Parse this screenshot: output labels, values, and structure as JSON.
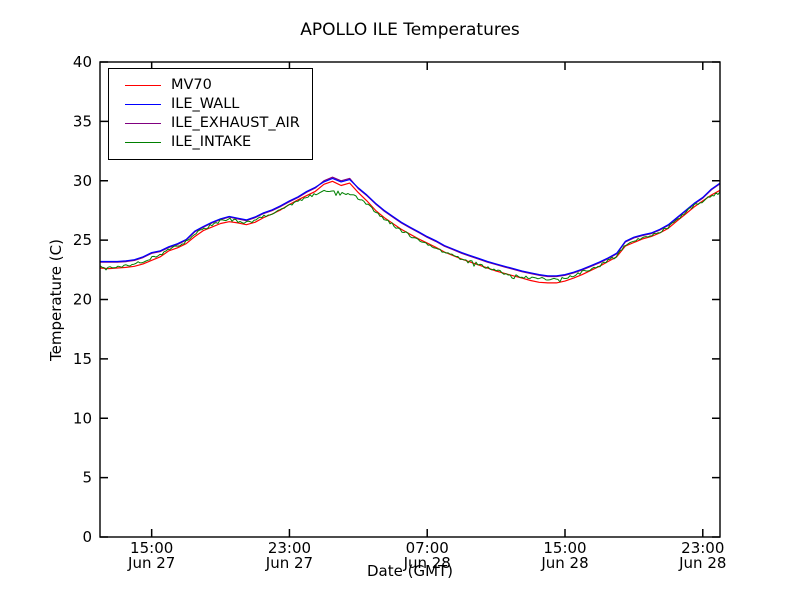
{
  "title": "APOLLO ILE Temperatures",
  "axes": {
    "xlabel": "Date (GMT)",
    "ylabel": "Temperature (C)",
    "ylim": [
      0,
      40
    ],
    "xlim_hours": [
      0,
      36
    ],
    "x_origin": "Jun 27 12:00 GMT",
    "yticks": [
      0,
      5,
      10,
      15,
      20,
      25,
      30,
      35,
      40
    ],
    "xticks": [
      {
        "hour": 3,
        "time": "15:00",
        "date": "Jun 27"
      },
      {
        "hour": 11,
        "time": "23:00",
        "date": "Jun 27"
      },
      {
        "hour": 19,
        "time": "07:00",
        "date": "Jun 28"
      },
      {
        "hour": 27,
        "time": "15:00",
        "date": "Jun 28"
      },
      {
        "hour": 35,
        "time": "23:00",
        "date": "Jun 28"
      }
    ],
    "frame_color": "#000000",
    "background": "#ffffff",
    "grid": false,
    "legend_position": "upper-left"
  },
  "chart_data": {
    "type": "line",
    "title": "APOLLO ILE Temperatures",
    "xlabel": "Date (GMT)",
    "ylabel": "Temperature (C)",
    "x_step_hours": 0.5,
    "x_hours_since": "Jun 27 12:00 GMT",
    "series": [
      {
        "name": "MV70",
        "color": "#ff0000",
        "noise": 0,
        "values": [
          22.65,
          22.6,
          22.65,
          22.7,
          22.8,
          23.0,
          23.3,
          23.6,
          24.1,
          24.35,
          24.7,
          25.3,
          25.8,
          26.1,
          26.4,
          26.55,
          26.45,
          26.3,
          26.5,
          26.9,
          27.2,
          27.55,
          28.0,
          28.4,
          28.75,
          29.1,
          29.7,
          29.95,
          29.6,
          29.8,
          29.0,
          28.3,
          27.5,
          26.9,
          26.4,
          25.9,
          25.5,
          25.1,
          24.75,
          24.4,
          24.0,
          23.7,
          23.4,
          23.15,
          22.9,
          22.65,
          22.4,
          22.2,
          22.0,
          21.8,
          21.6,
          21.45,
          21.4,
          21.4,
          21.55,
          21.8,
          22.1,
          22.45,
          22.8,
          23.2,
          23.6,
          24.5,
          24.8,
          25.1,
          25.3,
          25.6,
          26.0,
          26.6,
          27.2,
          27.8,
          28.3,
          28.8,
          29.2
        ]
      },
      {
        "name": "ILE_WALL",
        "color": "#0000ff",
        "noise": 0,
        "values": [
          23.2,
          23.2,
          23.2,
          23.25,
          23.35,
          23.6,
          23.95,
          24.1,
          24.45,
          24.7,
          25.05,
          25.75,
          26.15,
          26.5,
          26.8,
          27.0,
          26.85,
          26.7,
          26.95,
          27.3,
          27.55,
          27.9,
          28.3,
          28.65,
          29.1,
          29.45,
          29.9,
          30.2,
          29.9,
          30.1,
          29.4,
          28.8,
          28.1,
          27.5,
          27.0,
          26.5,
          26.1,
          25.7,
          25.3,
          24.95,
          24.55,
          24.25,
          23.95,
          23.7,
          23.45,
          23.2,
          23.0,
          22.8,
          22.6,
          22.4,
          22.25,
          22.1,
          22.0,
          22.0,
          22.1,
          22.3,
          22.55,
          22.85,
          23.15,
          23.5,
          23.9,
          24.9,
          25.25,
          25.45,
          25.6,
          25.9,
          26.3,
          26.9,
          27.5,
          28.1,
          28.6,
          29.3,
          29.8
        ]
      },
      {
        "name": "ILE_EXHAUST_AIR",
        "color": "#800080",
        "noise": 0,
        "values": [
          23.14,
          23.14,
          23.14,
          23.19,
          23.29,
          23.54,
          23.89,
          24.04,
          24.39,
          24.64,
          24.99,
          25.69,
          26.09,
          26.44,
          26.74,
          26.94,
          26.79,
          26.64,
          26.89,
          27.24,
          27.49,
          27.84,
          28.24,
          28.59,
          29.04,
          29.39,
          30.0,
          30.3,
          30.0,
          30.2,
          29.34,
          28.74,
          28.04,
          27.44,
          26.94,
          26.44,
          26.04,
          25.64,
          25.24,
          24.89,
          24.49,
          24.19,
          23.89,
          23.64,
          23.39,
          23.14,
          22.94,
          22.74,
          22.54,
          22.34,
          22.19,
          22.04,
          21.94,
          21.94,
          22.04,
          22.24,
          22.49,
          22.79,
          23.09,
          23.44,
          23.84,
          24.84,
          25.19,
          25.39,
          25.54,
          25.84,
          26.24,
          26.84,
          27.44,
          28.04,
          28.54,
          29.24,
          29.74
        ]
      },
      {
        "name": "ILE_INTAKE",
        "color": "#008000",
        "noise": 0.12,
        "values": [
          22.75,
          22.7,
          22.75,
          22.85,
          23.0,
          23.2,
          23.5,
          23.8,
          24.2,
          24.5,
          24.85,
          25.5,
          25.95,
          26.3,
          26.6,
          26.75,
          26.6,
          26.45,
          26.65,
          27.0,
          27.3,
          27.6,
          27.95,
          28.3,
          28.6,
          28.9,
          29.1,
          29.15,
          29.0,
          28.9,
          28.5,
          28.0,
          27.4,
          26.8,
          26.3,
          25.8,
          25.4,
          25.0,
          24.6,
          24.3,
          24.0,
          23.7,
          23.45,
          23.2,
          22.95,
          22.7,
          22.5,
          22.2,
          22.0,
          21.9,
          21.85,
          21.8,
          21.75,
          21.75,
          21.85,
          22.05,
          22.3,
          22.6,
          22.9,
          23.3,
          23.7,
          24.6,
          24.9,
          25.2,
          25.4,
          25.7,
          26.1,
          26.7,
          27.3,
          27.9,
          28.3,
          28.7,
          29.0
        ]
      }
    ]
  }
}
